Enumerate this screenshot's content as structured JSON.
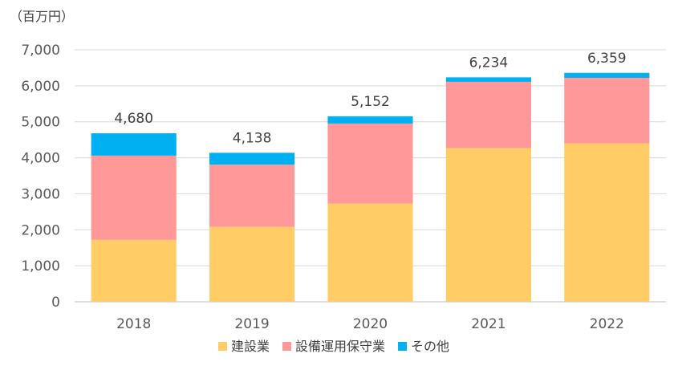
{
  "chart_data": {
    "type": "bar",
    "stacked": true,
    "unit_label": "（百万円）",
    "categories": [
      "2018",
      "2019",
      "2020",
      "2021",
      "2022"
    ],
    "series": [
      {
        "name": "建設業",
        "color": "#FFCC66",
        "values": [
          1720,
          2080,
          2730,
          4270,
          4400
        ]
      },
      {
        "name": "設備運用保守業",
        "color": "#FF9999",
        "values": [
          2340,
          1730,
          2220,
          1840,
          1820
        ]
      },
      {
        "name": "その他",
        "color": "#00B0F0",
        "values": [
          620,
          328,
          202,
          124,
          139
        ]
      }
    ],
    "totals": [
      "4,680",
      "4,138",
      "5,152",
      "6,234",
      "6,359"
    ],
    "y_ticks": [
      "0",
      "1,000",
      "2,000",
      "3,000",
      "4,000",
      "5,000",
      "6,000",
      "7,000"
    ],
    "ylim": [
      0,
      7000
    ],
    "grid": true,
    "legend_position": "bottom"
  }
}
